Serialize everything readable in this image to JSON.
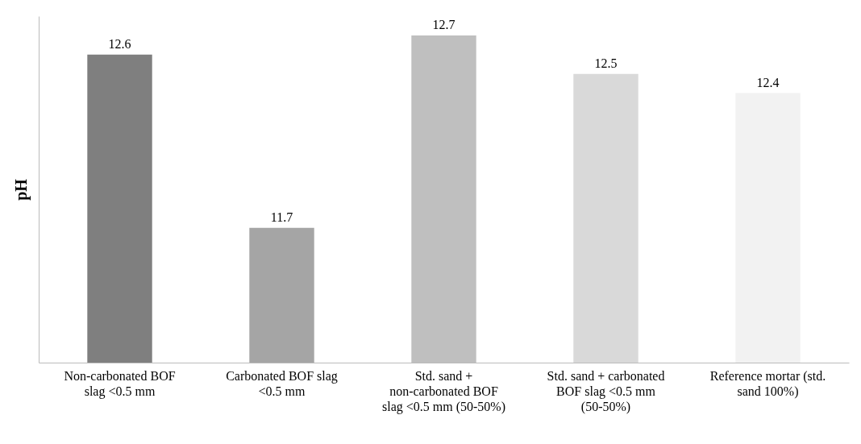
{
  "chart_data": {
    "type": "bar",
    "ylabel": "pH",
    "categories": [
      "Non-carbonated BOF slag <0.5 mm",
      "Carbonated BOF slag <0.5 mm",
      "Std. sand + non-carbonated BOF slag <0.5 mm (50-50%)",
      "Std. sand + carbonated BOF slag <0.5 mm (50-50%)",
      "Reference mortar (std. sand 100%)"
    ],
    "values": [
      12.6,
      11.7,
      12.7,
      12.5,
      12.4
    ],
    "colors": [
      "#7f7f7f",
      "#a5a5a5",
      "#bfbfbf",
      "#d9d9d9",
      "#f2f2f2"
    ],
    "ylim": [
      11.0,
      12.8
    ],
    "data_labels": true,
    "grid": false,
    "tick_labels": "x"
  }
}
